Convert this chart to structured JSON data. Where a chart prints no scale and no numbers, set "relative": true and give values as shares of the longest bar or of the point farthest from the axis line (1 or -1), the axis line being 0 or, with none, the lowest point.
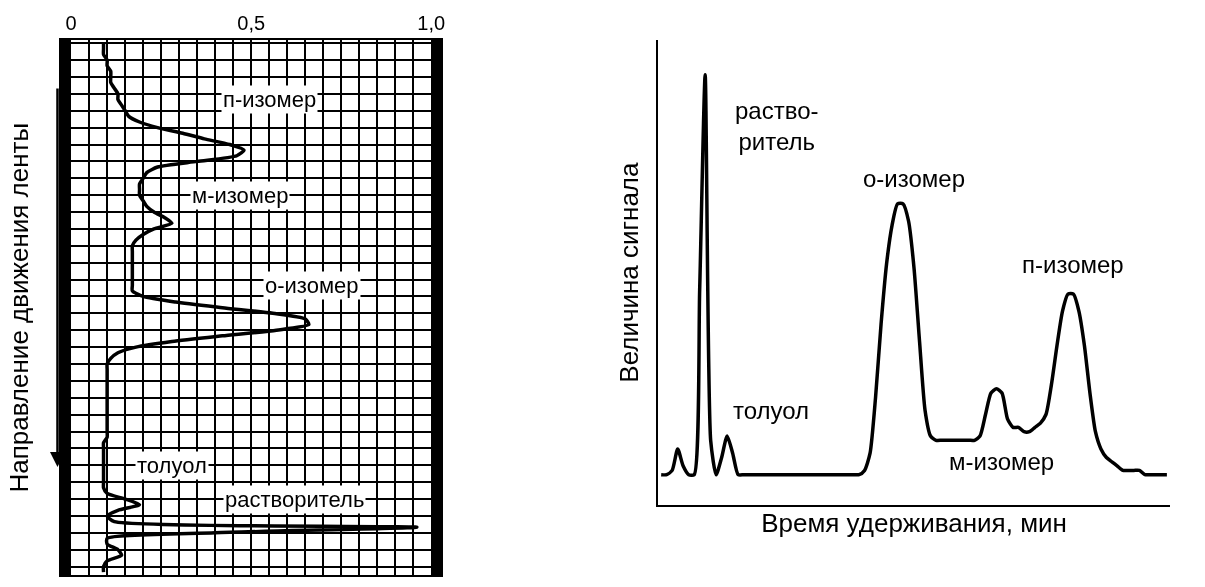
{
  "chart_data": [
    {
      "type": "line",
      "orientation": "horizontal",
      "ylabel": "Направление движения ленты",
      "color": "#000000",
      "grid": true,
      "tick_labels": "x",
      "xlim": [
        0,
        1
      ],
      "xticks": [
        0,
        {
          "value": 0.05,
          "label": null
        },
        {
          "value": 0.1,
          "label": null
        },
        {
          "value": 0.15,
          "label": null
        },
        {
          "value": 0.2,
          "label": null
        },
        {
          "value": 0.25,
          "label": null
        },
        {
          "value": 0.3,
          "label": null
        },
        {
          "value": 0.35,
          "label": null
        },
        {
          "value": 0.4,
          "label": null
        },
        {
          "value": 0.45,
          "label": null
        },
        {
          "value": 0.5,
          "label": "0,5"
        },
        {
          "value": 0.55,
          "label": null
        },
        {
          "value": 0.6,
          "label": null
        },
        {
          "value": 0.65,
          "label": null
        },
        {
          "value": 0.7,
          "label": null
        },
        {
          "value": 0.75,
          "label": null
        },
        {
          "value": 0.8,
          "label": null
        },
        {
          "value": 0.85,
          "label": null
        },
        {
          "value": 0.9,
          "label": null
        },
        {
          "value": 0.95,
          "label": null
        },
        {
          "value": 1,
          "label": "1,0"
        }
      ],
      "categories": [
        null,
        null,
        null,
        null,
        null,
        null,
        null,
        null,
        null,
        null,
        null,
        null,
        null,
        null,
        null,
        null,
        null,
        null,
        null,
        null,
        null,
        null,
        null,
        null,
        null,
        null,
        null,
        null,
        null,
        null,
        null,
        null,
        null,
        null,
        null,
        null,
        null,
        null,
        null,
        null,
        null,
        null,
        null,
        null,
        null,
        null,
        null,
        null,
        null,
        null,
        null,
        null,
        null,
        null,
        null,
        null,
        null,
        null,
        null,
        null,
        null,
        null,
        null,
        null,
        null,
        null,
        null,
        null,
        null,
        null,
        null,
        null,
        null,
        null,
        null,
        null,
        null,
        null,
        null,
        null,
        null,
        null,
        null,
        null,
        null,
        null,
        null,
        null,
        null,
        null,
        null,
        null,
        null,
        null,
        null
      ],
      "values": [
        0.09,
        0.09,
        0.09,
        0.1,
        0.1,
        0.11,
        0.11,
        0.11,
        0.12,
        0.13,
        0.13,
        0.14,
        0.15,
        0.16,
        0.19,
        0.24,
        0.31,
        0.37,
        0.44,
        0.48,
        0.46,
        0.35,
        0.24,
        0.21,
        0.2,
        0.19,
        0.19,
        0.19,
        0.2,
        0.21,
        0.23,
        0.26,
        0.28,
        0.23,
        0.2,
        0.18,
        0.17,
        0.17,
        0.17,
        0.17,
        0.17,
        0.17,
        0.17,
        0.17,
        0.17,
        0.2,
        0.29,
        0.42,
        0.56,
        0.65,
        0.66,
        0.57,
        0.42,
        0.28,
        0.18,
        0.13,
        0.11,
        0.1,
        0.1,
        0.1,
        0.1,
        0.1,
        0.1,
        0.1,
        0.1,
        0.1,
        0.1,
        0.1,
        0.1,
        0.1,
        0.1,
        0.09,
        0.09,
        0.09,
        0.09,
        0.09,
        0.09,
        0.09,
        0.09,
        0.09,
        0.1,
        0.15,
        0.19,
        0.13,
        0.1,
        0.12,
        0.96,
        0.4,
        0.1,
        0.1,
        0.13,
        0.14,
        0.1,
        0.09,
        0.09
      ],
      "annotations": [
        "п-изомер",
        "м-изомер",
        "о-изомер",
        "толуол",
        "растворитель"
      ]
    },
    {
      "type": "line",
      "relative": true,
      "tick_labels": false,
      "xlabel": "Время удерживания, мин",
      "ylabel": "Величина сигнала",
      "color": "#000000",
      "categories": [
        null,
        null,
        null,
        null,
        null,
        null,
        null,
        null,
        null,
        null,
        null,
        null,
        null,
        null,
        null,
        null,
        null,
        null,
        null,
        null,
        null,
        null,
        null,
        null,
        null,
        null,
        null,
        null,
        null,
        null,
        null,
        null,
        null,
        null,
        null,
        null,
        null,
        null,
        null,
        null,
        null,
        null,
        null,
        null,
        null,
        null,
        null,
        null,
        null,
        null,
        null,
        null,
        null,
        null,
        null,
        null,
        null,
        null,
        null,
        null,
        null,
        null,
        null,
        null,
        null,
        null,
        null,
        null,
        null,
        null,
        null,
        null,
        null,
        null,
        null,
        null,
        null,
        null,
        null,
        null,
        null,
        null,
        null,
        null,
        null,
        null,
        null,
        null,
        null,
        null,
        null,
        null,
        null
      ],
      "values": [
        0.07,
        0.07,
        0.08,
        0.13,
        0.09,
        0.07,
        0.07,
        0.5,
        1.0,
        0.15,
        0.07,
        0.11,
        0.16,
        0.12,
        0.07,
        0.07,
        0.07,
        0.07,
        0.07,
        0.07,
        0.07,
        0.07,
        0.07,
        0.07,
        0.07,
        0.07,
        0.07,
        0.07,
        0.07,
        0.07,
        0.07,
        0.07,
        0.07,
        0.07,
        0.07,
        0.07,
        0.07,
        0.08,
        0.12,
        0.25,
        0.42,
        0.56,
        0.65,
        0.7,
        0.7,
        0.66,
        0.55,
        0.38,
        0.22,
        0.16,
        0.15,
        0.15,
        0.15,
        0.15,
        0.15,
        0.15,
        0.15,
        0.15,
        0.16,
        0.21,
        0.26,
        0.27,
        0.26,
        0.2,
        0.18,
        0.18,
        0.17,
        0.17,
        0.18,
        0.19,
        0.21,
        0.28,
        0.37,
        0.45,
        0.49,
        0.49,
        0.45,
        0.37,
        0.26,
        0.17,
        0.13,
        0.11,
        0.1,
        0.09,
        0.08,
        0.08,
        0.08,
        0.08,
        0.07,
        0.07,
        0.07,
        0.07,
        0.07
      ],
      "annotations": [
        "раство-\nритель",
        "толуол",
        "о-изомер",
        "п-изомер",
        "м-изомер"
      ]
    }
  ]
}
